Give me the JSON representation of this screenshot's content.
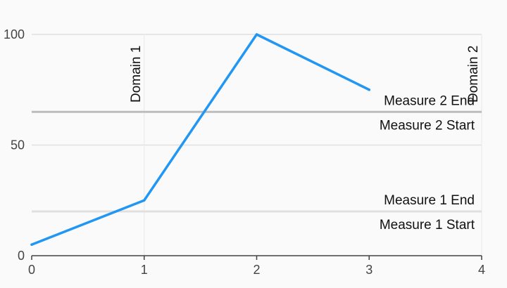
{
  "chart_data": {
    "type": "line",
    "title": "",
    "xlabel": "",
    "ylabel": "",
    "x": [
      0,
      1,
      2,
      3
    ],
    "series": [
      {
        "values": [
          5,
          25,
          100,
          75
        ],
        "color": "#2196f3"
      }
    ],
    "xlim": [
      0,
      4
    ],
    "ylim": [
      0,
      100
    ],
    "x_ticks": [
      0,
      1,
      2,
      3,
      4
    ],
    "y_ticks": [
      0,
      50,
      100
    ],
    "x_tick_labels": [
      "0",
      "1",
      "2",
      "3",
      "4"
    ],
    "y_tick_labels": [
      "0",
      "50",
      "100"
    ],
    "grid": true,
    "range_annotations": [
      {
        "axis": "y",
        "start": 20,
        "end": 20,
        "start_label": "Measure 1 Start",
        "end_label": "Measure 1 End",
        "color": "#e0e0e0"
      },
      {
        "axis": "y",
        "start": 65,
        "end": 65,
        "start_label": "Measure 2 Start",
        "end_label": "Measure 2 End",
        "color": "#bdbdbd"
      }
    ],
    "domain_annotations": [
      {
        "value": 1,
        "label": "Domain 1"
      },
      {
        "value": 4,
        "label": "Domain 2"
      }
    ]
  }
}
